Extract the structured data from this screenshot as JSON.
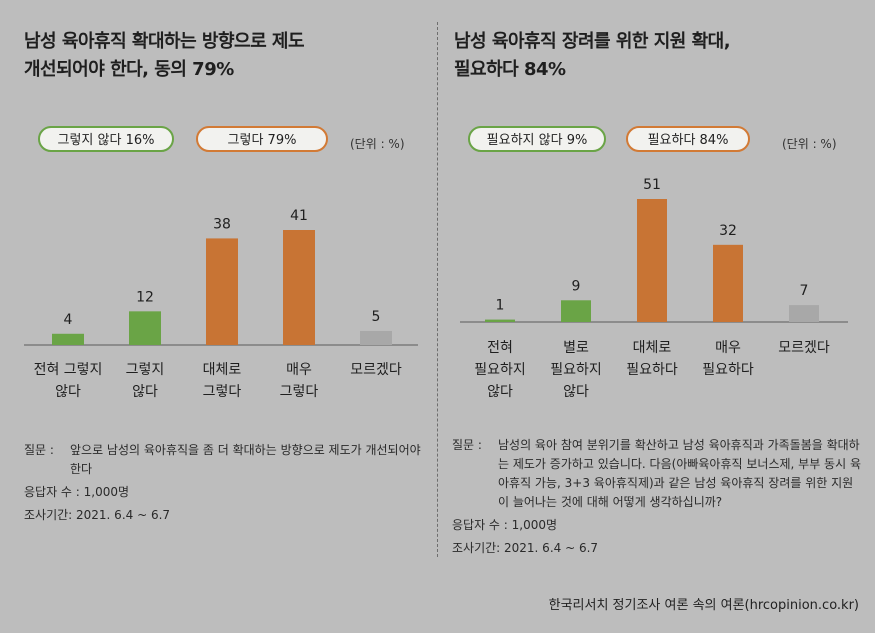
{
  "left": {
    "title_line1": "남성 육아휴직 확대하는 방향으로 제도",
    "title_line2": "개선되어야 한다, 동의 79%",
    "legend_disagree": "그렇지 않다 16%",
    "legend_agree": "그렇다 79%",
    "unit": "(단위 : %)",
    "question_label": "질문 :",
    "question": "앞으로 남성의 육아휴직을 좀 더 확대하는 방향으로 제도가 개선되어야 한다",
    "respondents": "응답자 수 : 1,000명",
    "period": "조사기간: 2021. 6.4 ~ 6.7"
  },
  "right": {
    "title_line1": "남성 육아휴직 장려를 위한 지원 확대,",
    "title_line2": "필요하다 84%",
    "legend_disagree": "필요하지 않다 9%",
    "legend_agree": "필요하다 84%",
    "unit": "(단위 : %)",
    "question_label": "질문 :",
    "question": "남성의 육아 참여 분위기를 확산하고 남성 육아휴직과 가족돌봄을 확대하는 제도가 증가하고 있습니다. 다음(아빠육아휴직 보너스제, 부부 동시 육아휴직 가능, 3+3 육아휴직제)과 같은 남성 육아휴직 장려를 위한 지원이 늘어나는 것에 대해 어떻게 생각하십니까?",
    "respondents": "응답자 수 : 1,000명",
    "period": "조사기간: 2021. 6.4 ~ 6.7"
  },
  "source": "한국리서치 정기조사 여론 속의 여론(hrcopinion.co.kr)",
  "colors": {
    "green": "#6aa446",
    "orange": "#c87434",
    "gray": "#a8a8a8",
    "background": "#bdbdbd"
  },
  "chart_data": [
    {
      "type": "bar",
      "title": "남성 육아휴직 확대하는 방향으로 제도 개선되어야 한다, 동의 79%",
      "unit": "%",
      "categories": [
        [
          "전혀 그렇지",
          "않다"
        ],
        [
          "그렇지",
          "않다"
        ],
        [
          "대체로",
          "그렇다"
        ],
        [
          "매우",
          "그렇다"
        ],
        [
          "모르겠다"
        ]
      ],
      "values": [
        4,
        12,
        38,
        41,
        5
      ],
      "colors": [
        "green",
        "green",
        "orange",
        "orange",
        "gray"
      ],
      "ylim": [
        0,
        41
      ],
      "legend": [
        "그렇지 않다 16%",
        "그렇다 79%"
      ]
    },
    {
      "type": "bar",
      "title": "남성 육아휴직 장려를 위한 지원 확대, 필요하다 84%",
      "unit": "%",
      "categories": [
        [
          "전혀",
          "필요하지",
          "않다"
        ],
        [
          "별로",
          "필요하지",
          "않다"
        ],
        [
          "대체로",
          "필요하다"
        ],
        [
          "매우",
          "필요하다"
        ],
        [
          "모르겠다"
        ]
      ],
      "values": [
        1,
        9,
        51,
        32,
        7
      ],
      "colors": [
        "green",
        "green",
        "orange",
        "orange",
        "gray"
      ],
      "ylim": [
        0,
        51
      ],
      "legend": [
        "필요하지 않다 9%",
        "필요하다 84%"
      ]
    }
  ]
}
